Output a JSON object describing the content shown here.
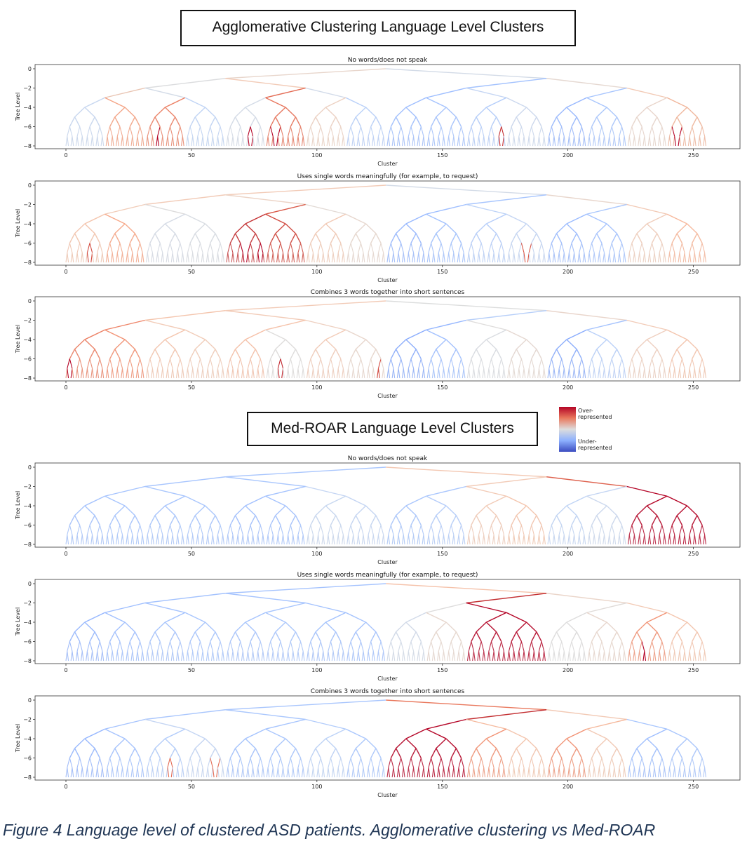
{
  "sections": [
    {
      "title": "Agglomerative Clustering Language Level Clusters"
    },
    {
      "title": "Med-ROAR Language Level Clusters"
    }
  ],
  "legend": {
    "top_label": "Over-\nrepresented",
    "bottom_label": "Under-\nrepresented",
    "top_color": "#b40426",
    "bottom_color": "#3b4cc0"
  },
  "caption": "Figure 4 Language level of clustered ASD patients. Agglomerative clustering vs Med-ROAR",
  "chart_data": [
    {
      "type": "dendrogram",
      "method": "Agglomerative",
      "title": "No words/does not speak",
      "xlabel": "Cluster",
      "ylabel": "Tree Level",
      "xlim": [
        0,
        256
      ],
      "ylim": [
        -8,
        0
      ],
      "x_ticks": [
        0,
        50,
        100,
        150,
        200,
        250
      ],
      "y_ticks": [
        0,
        -2,
        -4,
        -6,
        -8
      ],
      "leaf_count": 256,
      "levels": 8,
      "level3_subtree_colors": [
        "#c7d7f0",
        "#f4a385",
        "#ec7f63",
        "#c0d4f5",
        "#d3dbe7",
        "#e7745b",
        "#edd1c2",
        "#b9d0f9",
        "#9ebeff",
        "#a5c3fe",
        "#b2ccfb",
        "#cbd8ee",
        "#96b7ff",
        "#a9c6fd",
        "#e9d5cb",
        "#f1b69b"
      ],
      "level2_colors": [
        "#e9c5b3",
        "#d3dbe7",
        "#e36b54",
        "#d1dae9",
        "#9ebeff",
        "#c4d5f3",
        "#a7c5fe",
        "#f2c9b4"
      ],
      "level1_colors": [
        "#dbdcde",
        "#f2cbb7",
        "#a3c2fe",
        "#e5d8d1"
      ],
      "level0_colors": [
        "#e8d6cc",
        "#d3dbe7"
      ],
      "highlight_leaves": [
        {
          "x": 37,
          "c": "#b40426"
        },
        {
          "x": 74,
          "c": "#b40426"
        },
        {
          "x": 84,
          "c": "#b40426"
        },
        {
          "x": 174,
          "c": "#c32e31"
        },
        {
          "x": 244,
          "c": "#b40426"
        }
      ]
    },
    {
      "type": "dendrogram",
      "method": "Agglomerative",
      "title": "Uses single words meaningfully (for example, to request)",
      "xlabel": "Cluster",
      "ylabel": "Tree Level",
      "xlim": [
        0,
        256
      ],
      "ylim": [
        -8,
        0
      ],
      "x_ticks": [
        0,
        50,
        100,
        150,
        200,
        250
      ],
      "y_ticks": [
        0,
        -2,
        -4,
        -6,
        -8
      ],
      "leaf_count": 256,
      "levels": 8,
      "level3_subtree_colors": [
        "#f4c5ad",
        "#f7a889",
        "#d5dbe5",
        "#d8dce2",
        "#c43032",
        "#d0473d",
        "#f2c9b4",
        "#e7d7ce",
        "#97b8ff",
        "#a3c2fe",
        "#b5cdfa",
        "#c4d5f3",
        "#9abbff",
        "#a5c3fe",
        "#f0cdbb",
        "#f7b89c"
      ],
      "level2_colors": [
        "#f1ccb8",
        "#dddcdc",
        "#d95847",
        "#e2dad5",
        "#9ebeff",
        "#bcd2f7",
        "#aac7fd",
        "#f2c9b4"
      ],
      "level1_colors": [
        "#f2cbb7",
        "#ecd3c5",
        "#a7c5fe",
        "#e8d6cc"
      ],
      "level0_colors": [
        "#f2cbb7",
        "#d3dbe7"
      ],
      "highlight_leaves": [
        {
          "x": 10,
          "c": "#d24b40"
        },
        {
          "x": 72,
          "c": "#b40426"
        },
        {
          "x": 78,
          "c": "#b40426"
        },
        {
          "x": 184,
          "c": "#d85646"
        }
      ]
    },
    {
      "type": "dendrogram",
      "method": "Agglomerative",
      "title": "Combines 3 words together into short sentences",
      "xlabel": "Cluster",
      "ylabel": "Tree Level",
      "xlim": [
        0,
        256
      ],
      "ylim": [
        -8,
        0
      ],
      "x_ticks": [
        0,
        50,
        100,
        150,
        200,
        250
      ],
      "y_ticks": [
        0,
        -2,
        -4,
        -6,
        -8
      ],
      "leaf_count": 256,
      "levels": 8,
      "level3_subtree_colors": [
        "#ec7f63",
        "#f29274",
        "#f4c5ad",
        "#f1ccb8",
        "#f6bfa6",
        "#dedcdb",
        "#f2cbb7",
        "#e8d6cc",
        "#88abfd",
        "#a1c0ff",
        "#d9dce1",
        "#e5d8d1",
        "#88abfd",
        "#b9d0f9",
        "#efcfbf",
        "#f4c5ad"
      ],
      "level2_colors": [
        "#ee8468",
        "#f2cbb7",
        "#f5c2aa",
        "#eed0c0",
        "#94b6ff",
        "#dedcdb",
        "#a5c3fe",
        "#f2cbb7"
      ],
      "level1_colors": [
        "#f4c5ad",
        "#f2cbb7",
        "#b7cff9",
        "#e9d5cb"
      ],
      "level0_colors": [
        "#f2cbb7",
        "#dcdddd"
      ],
      "highlight_leaves": [
        {
          "x": 2,
          "c": "#b40426"
        },
        {
          "x": 86,
          "c": "#c0282f"
        },
        {
          "x": 125,
          "c": "#d24b40"
        }
      ]
    },
    {
      "type": "dendrogram",
      "method": "Med-ROAR",
      "title": "No words/does not speak",
      "xlabel": "Cluster",
      "ylabel": "Tree Level",
      "xlim": [
        0,
        256
      ],
      "ylim": [
        -8,
        0
      ],
      "x_ticks": [
        0,
        50,
        100,
        150,
        200,
        250
      ],
      "y_ticks": [
        0,
        -2,
        -4,
        -6,
        -8
      ],
      "leaf_count": 256,
      "levels": 8,
      "level3_subtree_colors": [
        "#a5c3fe",
        "#a7c5fe",
        "#a7c5fe",
        "#a9c6fd",
        "#a1c0ff",
        "#a5c3fe",
        "#c7d7f0",
        "#c4d5f3",
        "#a9c6fd",
        "#b5cdfa",
        "#f2cbb7",
        "#f4c5ad",
        "#c0d4f5",
        "#cbd8ee",
        "#b40426",
        "#b40426"
      ],
      "level2_colors": [
        "#a5c3fe",
        "#a9c6fd",
        "#a5c3fe",
        "#c4d5f3",
        "#a9c6fd",
        "#f2c9b4",
        "#c4d5f3",
        "#b40426"
      ],
      "level1_colors": [
        "#a7c5fe",
        "#aac7fd",
        "#f2cbb7",
        "#de614d"
      ],
      "level0_colors": [
        "#a9c6fd",
        "#f3c7b1"
      ],
      "highlight_leaves": []
    },
    {
      "type": "dendrogram",
      "method": "Med-ROAR",
      "title": "Uses single words meaningfully (for example, to request)",
      "xlabel": "Cluster",
      "ylabel": "Tree Level",
      "xlim": [
        0,
        256
      ],
      "ylim": [
        -8,
        0
      ],
      "x_ticks": [
        0,
        50,
        100,
        150,
        200,
        250
      ],
      "y_ticks": [
        0,
        -2,
        -4,
        -6,
        -8
      ],
      "leaf_count": 256,
      "levels": 8,
      "level3_subtree_colors": [
        "#96b7ff",
        "#a1c0ff",
        "#a5c3fe",
        "#a7c5fe",
        "#a5c3fe",
        "#a9c6fd",
        "#a3c2fe",
        "#a5c3fe",
        "#d1dae9",
        "#e7d7ce",
        "#b40426",
        "#b40426",
        "#dddcdc",
        "#e8d6cc",
        "#f29274",
        "#f4c5ad"
      ],
      "level2_colors": [
        "#9ebeff",
        "#a5c3fe",
        "#a7c5fe",
        "#a3c2fe",
        "#dddcdc",
        "#b40426",
        "#e0dbd8",
        "#f2c9b4"
      ],
      "level1_colors": [
        "#a3c2fe",
        "#a5c3fe",
        "#c32e31",
        "#ead5c9"
      ],
      "level0_colors": [
        "#a5c3fe",
        "#f5c2aa"
      ],
      "highlight_leaves": [
        {
          "x": 231,
          "c": "#b40426"
        }
      ]
    },
    {
      "type": "dendrogram",
      "method": "Med-ROAR",
      "title": "Combines 3 words together into short sentences",
      "xlabel": "Cluster",
      "ylabel": "Tree Level",
      "xlim": [
        0,
        256
      ],
      "ylim": [
        -8,
        0
      ],
      "x_ticks": [
        0,
        50,
        100,
        150,
        200,
        250
      ],
      "y_ticks": [
        0,
        -2,
        -4,
        -6,
        -8
      ],
      "leaf_count": 256,
      "levels": 8,
      "level3_subtree_colors": [
        "#96b7ff",
        "#a5c3fe",
        "#b2ccfb",
        "#c4d5f3",
        "#a3c2fe",
        "#a9c6fd",
        "#bcd2f7",
        "#aac7fd",
        "#b40426",
        "#b40426",
        "#f29274",
        "#f4c5ad",
        "#f29274",
        "#f2c9b4",
        "#9ebeff",
        "#a9c6fd"
      ],
      "level2_colors": [
        "#a5c3fe",
        "#c4d5f3",
        "#a7c5fe",
        "#b2ccfb",
        "#b40426",
        "#f5b99d",
        "#f5b99d",
        "#a7c5fe"
      ],
      "level1_colors": [
        "#a9c6fd",
        "#aac7fd",
        "#c32e31",
        "#f2c9b4"
      ],
      "level0_colors": [
        "#a9c6fd",
        "#e9785d"
      ],
      "highlight_leaves": [
        {
          "x": 42,
          "c": "#e36b54"
        },
        {
          "x": 60,
          "c": "#e36b54"
        }
      ]
    }
  ]
}
